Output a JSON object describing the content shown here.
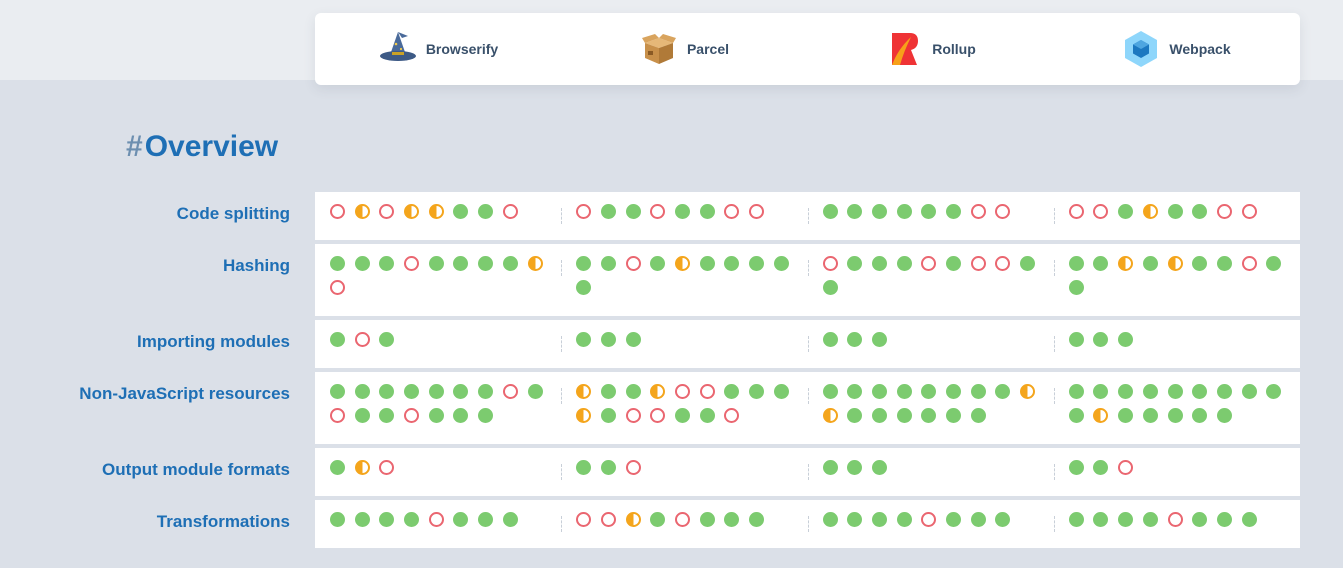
{
  "tools": [
    {
      "name": "Browserify",
      "icon": "wizard-hat-icon"
    },
    {
      "name": "Parcel",
      "icon": "package-box-icon"
    },
    {
      "name": "Rollup",
      "icon": "rollup-logo-icon"
    },
    {
      "name": "Webpack",
      "icon": "webpack-cube-icon"
    }
  ],
  "section": {
    "hash": "#",
    "title": "Overview"
  },
  "colors": {
    "full": "#7ccb6f",
    "partial": "#f4a51c",
    "none": "#ea6670",
    "title": "#1e6fb5"
  },
  "rows": [
    {
      "label": "Code splitting",
      "cells": [
        [
          "none",
          "partial",
          "none",
          "partial",
          "partial",
          "full",
          "full",
          "none"
        ],
        [
          "none",
          "full",
          "full",
          "none",
          "full",
          "full",
          "none",
          "none"
        ],
        [
          "full",
          "full",
          "full",
          "full",
          "full",
          "full",
          "none",
          "none"
        ],
        [
          "none",
          "none",
          "full",
          "partial",
          "full",
          "full",
          "none",
          "none"
        ]
      ]
    },
    {
      "label": "Hashing",
      "cells": [
        [
          "full",
          "full",
          "full",
          "none",
          "full",
          "full",
          "full",
          "full",
          "partial",
          "none"
        ],
        [
          "full",
          "full",
          "none",
          "full",
          "partial",
          "full",
          "full",
          "full",
          "full",
          "full"
        ],
        [
          "none",
          "full",
          "full",
          "full",
          "none",
          "full",
          "none",
          "none",
          "full",
          "full"
        ],
        [
          "full",
          "full",
          "partial",
          "full",
          "partial",
          "full",
          "full",
          "none",
          "full",
          "full"
        ]
      ]
    },
    {
      "label": "Importing modules",
      "cells": [
        [
          "full",
          "none",
          "full"
        ],
        [
          "full",
          "full",
          "full"
        ],
        [
          "full",
          "full",
          "full"
        ],
        [
          "full",
          "full",
          "full"
        ]
      ]
    },
    {
      "label": "Non-JavaScript resources",
      "cells": [
        [
          "full",
          "full",
          "full",
          "full",
          "full",
          "full",
          "full",
          "none",
          "full",
          "none",
          "full",
          "full",
          "none",
          "full",
          "full",
          "full"
        ],
        [
          "partial",
          "full",
          "full",
          "partial",
          "none",
          "none",
          "full",
          "full",
          "full",
          "partial",
          "full",
          "none",
          "none",
          "full",
          "full",
          "none"
        ],
        [
          "full",
          "full",
          "full",
          "full",
          "full",
          "full",
          "full",
          "full",
          "partial",
          "partial",
          "full",
          "full",
          "full",
          "full",
          "full",
          "full"
        ],
        [
          "full",
          "full",
          "full",
          "full",
          "full",
          "full",
          "full",
          "full",
          "full",
          "full",
          "partial",
          "full",
          "full",
          "full",
          "full",
          "full"
        ]
      ]
    },
    {
      "label": "Output module formats",
      "cells": [
        [
          "full",
          "partial",
          "none"
        ],
        [
          "full",
          "full",
          "none"
        ],
        [
          "full",
          "full",
          "full"
        ],
        [
          "full",
          "full",
          "none"
        ]
      ]
    },
    {
      "label": "Transformations",
      "cells": [
        [
          "full",
          "full",
          "full",
          "full",
          "none",
          "full",
          "full",
          "full"
        ],
        [
          "none",
          "none",
          "partial",
          "full",
          "none",
          "full",
          "full",
          "full"
        ],
        [
          "full",
          "full",
          "full",
          "full",
          "none",
          "full",
          "full",
          "full"
        ],
        [
          "full",
          "full",
          "full",
          "full",
          "none",
          "full",
          "full",
          "full"
        ]
      ]
    }
  ]
}
